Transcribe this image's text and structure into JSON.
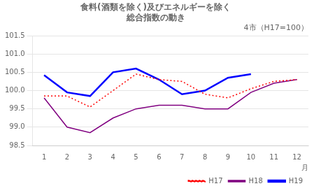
{
  "chart_data": {
    "type": "line",
    "title": [
      "食料(酒類を除く)及びエネルギーを除く",
      "総合指数の動き"
    ],
    "subtitle": "4市（H17=100）",
    "x_label": "月",
    "xlim": [
      0.5,
      12.5
    ],
    "xticks": [
      1,
      2,
      3,
      4,
      5,
      6,
      7,
      8,
      9,
      10,
      11,
      12
    ],
    "ylim": [
      98.5,
      101.5
    ],
    "yticks": [
      98.5,
      {
        "value": 99,
        "label": "99.0"
      },
      99.5,
      {
        "value": 100,
        "label": "100.0"
      },
      100.5,
      {
        "value": 101,
        "label": "101.0"
      },
      101.5
    ],
    "grid": "y",
    "legend": "lower right",
    "x": [
      1,
      2,
      3,
      4,
      5,
      6,
      7,
      8,
      9,
      10,
      11,
      12
    ],
    "series": [
      {
        "name": "H17",
        "color": "#ff0000",
        "line_style": "dotted",
        "values": [
          99.85,
          99.85,
          99.55,
          100.0,
          100.45,
          100.3,
          100.25,
          99.9,
          99.8,
          100.05,
          100.25,
          100.3
        ]
      },
      {
        "name": "H18",
        "color": "#800080",
        "line_style": "solid",
        "values": [
          99.8,
          99.0,
          98.85,
          99.25,
          99.5,
          99.6,
          99.6,
          99.5,
          99.5,
          99.95,
          100.2,
          100.3
        ]
      },
      {
        "name": "H19",
        "color": "#0000ff",
        "line_style": "solid",
        "values": [
          100.42,
          99.95,
          99.85,
          100.5,
          100.6,
          100.3,
          99.9,
          100.0,
          100.35,
          100.45,
          null,
          null
        ]
      }
    ]
  }
}
